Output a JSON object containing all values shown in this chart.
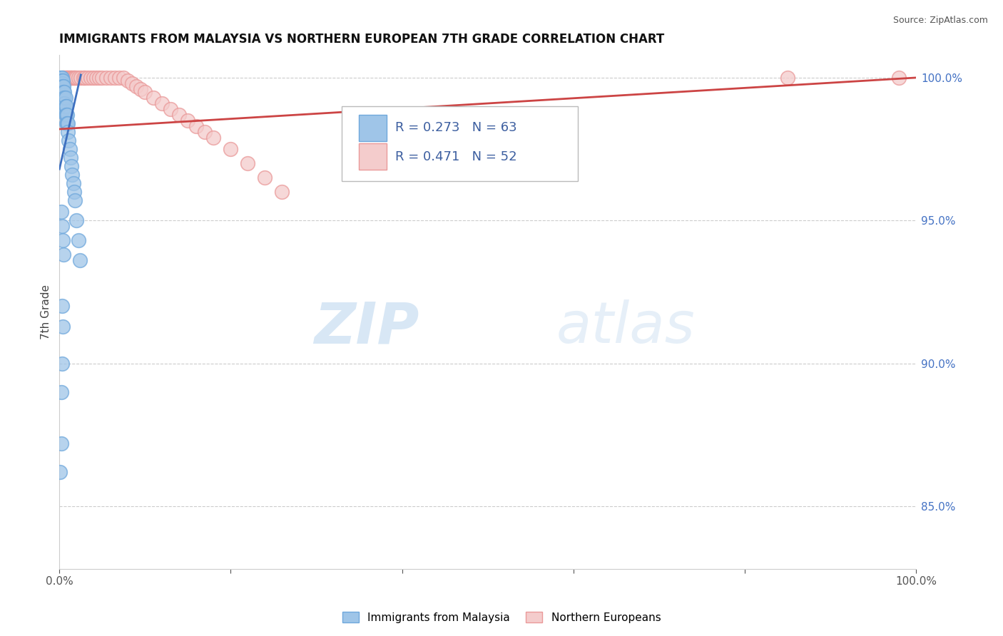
{
  "title": "IMMIGRANTS FROM MALAYSIA VS NORTHERN EUROPEAN 7TH GRADE CORRELATION CHART",
  "source_text": "Source: ZipAtlas.com",
  "ylabel": "7th Grade",
  "watermark_zip": "ZIP",
  "watermark_atlas": "atlas",
  "xmin": 0.0,
  "xmax": 1.0,
  "ymin": 0.828,
  "ymax": 1.008,
  "right_yticks": [
    0.85,
    0.9,
    0.95,
    1.0
  ],
  "right_yticklabels": [
    "85.0%",
    "90.0%",
    "95.0%",
    "100.0%"
  ],
  "legend_r1": "R = 0.273",
  "legend_n1": "N = 63",
  "legend_r2": "R = 0.471",
  "legend_n2": "N = 52",
  "legend_label1": "Immigrants from Malaysia",
  "legend_label2": "Northern Europeans",
  "blue_color": "#9fc5e8",
  "blue_edge": "#6fa8dc",
  "pink_color": "#f4cccc",
  "pink_edge": "#ea9999",
  "blue_line_color": "#3d6fbf",
  "pink_line_color": "#cc4444",
  "malaysia_x": [
    0.001,
    0.001,
    0.002,
    0.002,
    0.002,
    0.002,
    0.002,
    0.003,
    0.003,
    0.003,
    0.003,
    0.003,
    0.003,
    0.003,
    0.003,
    0.003,
    0.003,
    0.004,
    0.004,
    0.004,
    0.004,
    0.004,
    0.004,
    0.005,
    0.005,
    0.005,
    0.005,
    0.005,
    0.006,
    0.006,
    0.006,
    0.006,
    0.007,
    0.007,
    0.007,
    0.008,
    0.008,
    0.008,
    0.009,
    0.009,
    0.01,
    0.01,
    0.011,
    0.012,
    0.013,
    0.014,
    0.015,
    0.016,
    0.017,
    0.018,
    0.02,
    0.022,
    0.024,
    0.002,
    0.003,
    0.004,
    0.005,
    0.003,
    0.004,
    0.003,
    0.002,
    0.002,
    0.001
  ],
  "malaysia_y": [
    1.0,
    0.999,
    1.0,
    0.999,
    0.998,
    0.997,
    0.996,
    1.0,
    0.999,
    0.998,
    0.997,
    0.996,
    0.995,
    0.994,
    0.993,
    0.992,
    0.991,
    0.999,
    0.997,
    0.995,
    0.993,
    0.991,
    0.989,
    0.997,
    0.995,
    0.993,
    0.991,
    0.989,
    0.995,
    0.993,
    0.991,
    0.989,
    0.993,
    0.99,
    0.987,
    0.99,
    0.987,
    0.984,
    0.987,
    0.984,
    0.984,
    0.981,
    0.978,
    0.975,
    0.972,
    0.969,
    0.966,
    0.963,
    0.96,
    0.957,
    0.95,
    0.943,
    0.936,
    0.953,
    0.948,
    0.943,
    0.938,
    0.92,
    0.913,
    0.9,
    0.89,
    0.872,
    0.862
  ],
  "northern_x": [
    0.002,
    0.003,
    0.004,
    0.005,
    0.006,
    0.007,
    0.008,
    0.009,
    0.01,
    0.011,
    0.012,
    0.013,
    0.014,
    0.015,
    0.016,
    0.017,
    0.018,
    0.02,
    0.022,
    0.025,
    0.028,
    0.03,
    0.033,
    0.036,
    0.04,
    0.043,
    0.046,
    0.05,
    0.055,
    0.06,
    0.065,
    0.07,
    0.075,
    0.08,
    0.085,
    0.09,
    0.095,
    0.1,
    0.11,
    0.12,
    0.13,
    0.14,
    0.15,
    0.16,
    0.17,
    0.18,
    0.2,
    0.22,
    0.24,
    0.26,
    0.85,
    0.98
  ],
  "northern_y": [
    0.998,
    0.999,
    1.0,
    1.0,
    1.0,
    1.0,
    1.0,
    1.0,
    1.0,
    1.0,
    1.0,
    1.0,
    1.0,
    1.0,
    1.0,
    1.0,
    1.0,
    1.0,
    1.0,
    1.0,
    1.0,
    1.0,
    1.0,
    1.0,
    1.0,
    1.0,
    1.0,
    1.0,
    1.0,
    1.0,
    1.0,
    1.0,
    1.0,
    0.999,
    0.998,
    0.997,
    0.996,
    0.995,
    0.993,
    0.991,
    0.989,
    0.987,
    0.985,
    0.983,
    0.981,
    0.979,
    0.975,
    0.97,
    0.965,
    0.96,
    1.0,
    1.0
  ],
  "blue_trend_x": [
    0.0,
    0.025
  ],
  "blue_trend_y": [
    0.968,
    1.001
  ],
  "pink_trend_x": [
    0.0,
    1.0
  ],
  "pink_trend_y": [
    0.982,
    1.0
  ]
}
